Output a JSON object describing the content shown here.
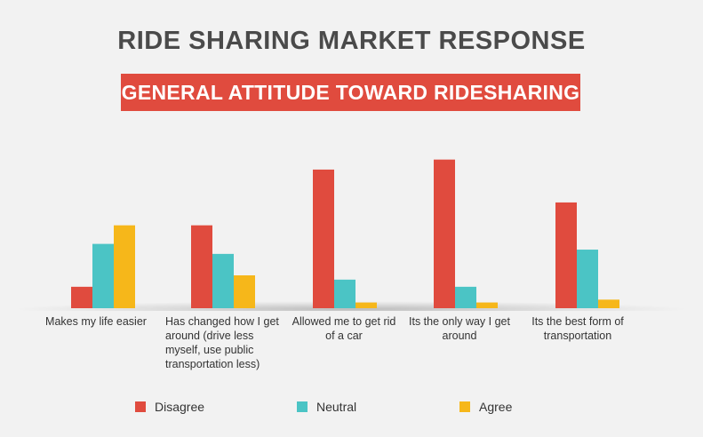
{
  "title": "RIDE SHARING MARKET RESPONSE",
  "subtitle": "GENERAL ATTITUDE TOWARD RIDESHARING",
  "colors": {
    "Disagree": "#e04b3e",
    "Neutral": "#4bc4c5",
    "Agree": "#f6b71a",
    "banner": "#e04b3e",
    "title": "#4a4a4a"
  },
  "chart_data": {
    "type": "bar",
    "title": "RIDE SHARING MARKET RESPONSE",
    "subtitle": "GENERAL ATTITUDE TOWARD RIDESHARING",
    "categories": [
      "Makes my life easier",
      "Has changed how I get around (drive less myself, use public transportation less)",
      "Allowed me to get rid of a car",
      "Its the only way I get around",
      "Its the best form of transportation"
    ],
    "series": [
      {
        "name": "Disagree",
        "values": [
          15,
          58,
          97,
          104,
          74
        ]
      },
      {
        "name": "Neutral",
        "values": [
          45,
          38,
          20,
          15,
          41
        ]
      },
      {
        "name": "Agree",
        "values": [
          58,
          23,
          4,
          4,
          6
        ]
      }
    ],
    "ylim": [
      0,
      110
    ],
    "grid": false,
    "legend": "bottom"
  }
}
